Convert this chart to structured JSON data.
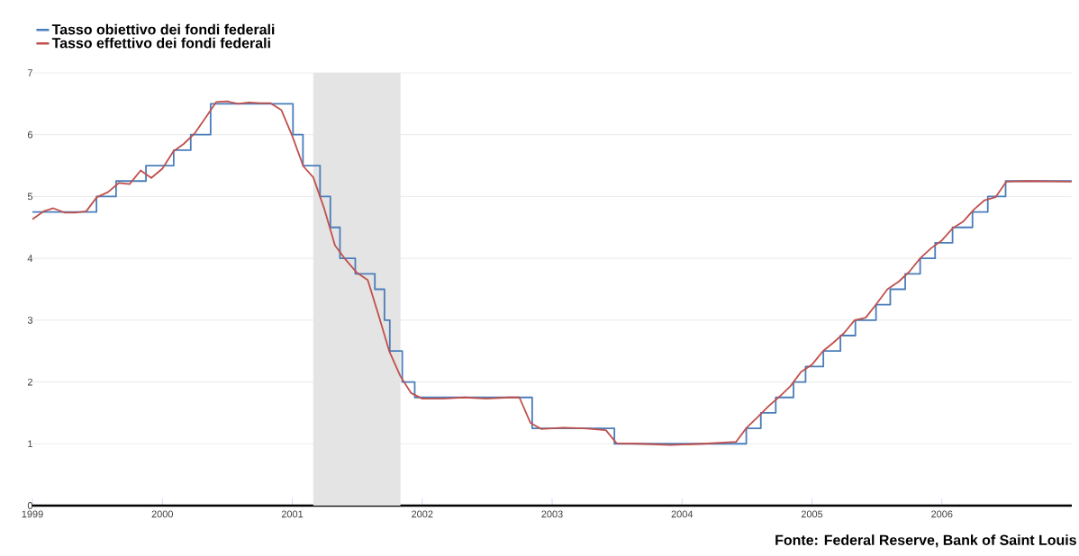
{
  "chart_data": {
    "type": "line",
    "xlim": [
      "1999",
      "2007"
    ],
    "xticks": [
      "1999",
      "2000",
      "2001",
      "2002",
      "2003",
      "2004",
      "2005",
      "2006"
    ],
    "ylim": [
      0,
      7
    ],
    "yticks": [
      0,
      1,
      2,
      3,
      4,
      5,
      6,
      7
    ],
    "grid": "y",
    "legend": "top left",
    "bands": [
      {
        "axis": "x",
        "from": "2001-03-01",
        "to": "2001-11-01",
        "color": "#e4e4e4"
      }
    ],
    "annotations": [
      "Fonte: Federal Reserve, Bank of Saint Louis"
    ],
    "series": [
      {
        "name": "Tasso obiettivo dei fondi federali",
        "type": "step",
        "color": "#4a7ebb",
        "x": [
          "1999-01-01",
          "1999-06-30",
          "1999-08-24",
          "1999-11-16",
          "2000-02-02",
          "2000-03-21",
          "2000-05-16",
          "2001-01-03",
          "2001-01-31",
          "2001-03-20",
          "2001-04-18",
          "2001-05-15",
          "2001-06-27",
          "2001-08-21",
          "2001-09-17",
          "2001-10-02",
          "2001-11-06",
          "2001-12-11",
          "2002-11-06",
          "2003-06-25",
          "2004-06-30",
          "2004-08-10",
          "2004-09-21",
          "2004-11-10",
          "2004-12-14",
          "2005-02-02",
          "2005-03-22",
          "2005-05-03",
          "2005-06-30",
          "2005-08-09",
          "2005-09-20",
          "2005-11-01",
          "2005-12-13",
          "2006-01-31",
          "2006-03-28",
          "2006-05-10",
          "2006-06-29",
          "2007-01-01"
        ],
        "values": [
          4.75,
          5.0,
          5.25,
          5.5,
          5.75,
          6.0,
          6.5,
          6.0,
          5.5,
          5.0,
          4.5,
          4.0,
          3.75,
          3.5,
          3.0,
          2.5,
          2.0,
          1.75,
          1.25,
          1.0,
          1.25,
          1.5,
          1.75,
          2.0,
          2.25,
          2.5,
          2.75,
          3.0,
          3.25,
          3.5,
          3.75,
          4.0,
          4.25,
          4.5,
          4.75,
          5.0,
          5.25,
          5.25
        ]
      },
      {
        "name": "Tasso effettivo dei fondi federali",
        "type": "line",
        "color": "#c0504d",
        "x": [
          "1999-01-01",
          "1999-02-01",
          "1999-03-01",
          "1999-04-01",
          "1999-05-01",
          "1999-06-01",
          "1999-07-01",
          "1999-08-01",
          "1999-09-01",
          "1999-10-01",
          "1999-11-01",
          "1999-12-01",
          "2000-01-01",
          "2000-02-01",
          "2000-03-01",
          "2000-04-01",
          "2000-05-01",
          "2000-06-01",
          "2000-07-01",
          "2000-08-01",
          "2000-09-01",
          "2000-10-01",
          "2000-11-01",
          "2000-12-01",
          "2001-01-01",
          "2001-02-01",
          "2001-03-01",
          "2001-04-01",
          "2001-05-01",
          "2001-06-01",
          "2001-07-01",
          "2001-08-01",
          "2001-09-01",
          "2001-10-01",
          "2001-11-01",
          "2001-12-01",
          "2002-01-01",
          "2002-03-01",
          "2002-05-01",
          "2002-07-01",
          "2002-09-01",
          "2002-10-01",
          "2002-11-01",
          "2002-12-01",
          "2003-02-01",
          "2003-04-01",
          "2003-06-01",
          "2003-07-01",
          "2003-09-01",
          "2003-12-01",
          "2004-03-01",
          "2004-06-01",
          "2004-07-01",
          "2004-08-01",
          "2004-09-01",
          "2004-10-01",
          "2004-11-01",
          "2004-12-01",
          "2005-01-01",
          "2005-02-01",
          "2005-03-01",
          "2005-04-01",
          "2005-05-01",
          "2005-06-01",
          "2005-07-01",
          "2005-08-01",
          "2005-09-01",
          "2005-10-01",
          "2005-11-01",
          "2005-12-01",
          "2006-01-01",
          "2006-02-01",
          "2006-03-01",
          "2006-04-01",
          "2006-05-01",
          "2006-06-01",
          "2006-07-01",
          "2006-09-01",
          "2006-12-31"
        ],
        "values": [
          4.63,
          4.76,
          4.81,
          4.74,
          4.74,
          4.76,
          4.99,
          5.07,
          5.22,
          5.2,
          5.42,
          5.3,
          5.45,
          5.73,
          5.85,
          6.02,
          6.27,
          6.53,
          6.54,
          6.5,
          6.52,
          6.51,
          6.51,
          6.4,
          5.98,
          5.49,
          5.31,
          4.8,
          4.21,
          3.97,
          3.77,
          3.65,
          3.07,
          2.49,
          2.09,
          1.82,
          1.73,
          1.73,
          1.75,
          1.73,
          1.75,
          1.75,
          1.34,
          1.24,
          1.26,
          1.25,
          1.22,
          1.01,
          1.0,
          0.98,
          1.0,
          1.03,
          1.26,
          1.43,
          1.61,
          1.76,
          1.93,
          2.16,
          2.28,
          2.5,
          2.63,
          2.79,
          3.0,
          3.04,
          3.26,
          3.5,
          3.62,
          3.78,
          4.0,
          4.16,
          4.29,
          4.49,
          4.59,
          4.79,
          4.94,
          4.99,
          5.24,
          5.25,
          5.24
        ]
      }
    ]
  }
}
